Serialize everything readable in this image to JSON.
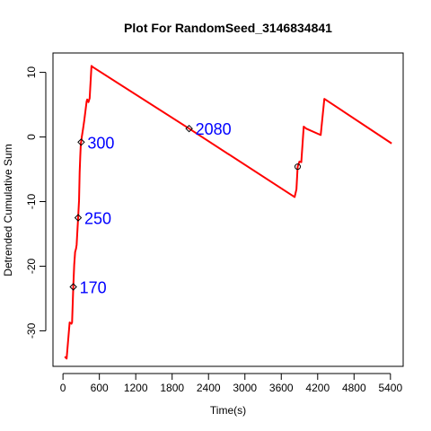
{
  "chart_data": {
    "type": "line",
    "title": "Plot For RandomSeed_3146834841",
    "xlabel": "Time(s)",
    "ylabel": "Detrended Cumulative Sum",
    "xlim": [
      -165,
      5610
    ],
    "ylim": [
      -35.5,
      13
    ],
    "x_ticks": [
      0,
      600,
      1200,
      1800,
      2400,
      3000,
      3600,
      4200,
      4800,
      5400
    ],
    "y_ticks": [
      -30,
      -20,
      -10,
      0,
      10
    ],
    "grid": false,
    "legend": "none",
    "series": [
      {
        "color": "#ff0000",
        "x": [
          30,
          60,
          110,
          140,
          150,
          170,
          185,
          200,
          215,
          225,
          235,
          250,
          265,
          275,
          285,
          295,
          300,
          310,
          330,
          350,
          370,
          390,
          400,
          420,
          440,
          470,
          495,
          2080,
          3820,
          3850,
          3870,
          3900,
          3930,
          3970,
          4010,
          4250,
          4310,
          5420
        ],
        "y": [
          -34.0,
          -34.3,
          -28.7,
          -28.9,
          -28.7,
          -23.2,
          -19.8,
          -17.8,
          -17.3,
          -16.7,
          -15.0,
          -12.5,
          -9.8,
          -5.5,
          -3.0,
          -0.9,
          -0.8,
          0.0,
          1.2,
          2.5,
          4.0,
          5.5,
          5.8,
          5.4,
          6.0,
          11.0,
          10.8,
          1.3,
          -9.3,
          -8.1,
          -4.6,
          -3.8,
          -3.9,
          1.6,
          1.3,
          0.3,
          5.9,
          -1.0
        ]
      }
    ],
    "annotations": [
      {
        "label": "170",
        "x": 170,
        "y": -23.2,
        "color": "#0000ff"
      },
      {
        "label": "250",
        "x": 250,
        "y": -12.5,
        "color": "#0000ff"
      },
      {
        "label": "300",
        "x": 300,
        "y": -0.8,
        "color": "#0000ff"
      },
      {
        "label": "2080",
        "x": 2080,
        "y": 1.3,
        "color": "#0000ff"
      }
    ],
    "extra_markers": [
      {
        "x": 3870,
        "y": -4.6
      }
    ]
  }
}
